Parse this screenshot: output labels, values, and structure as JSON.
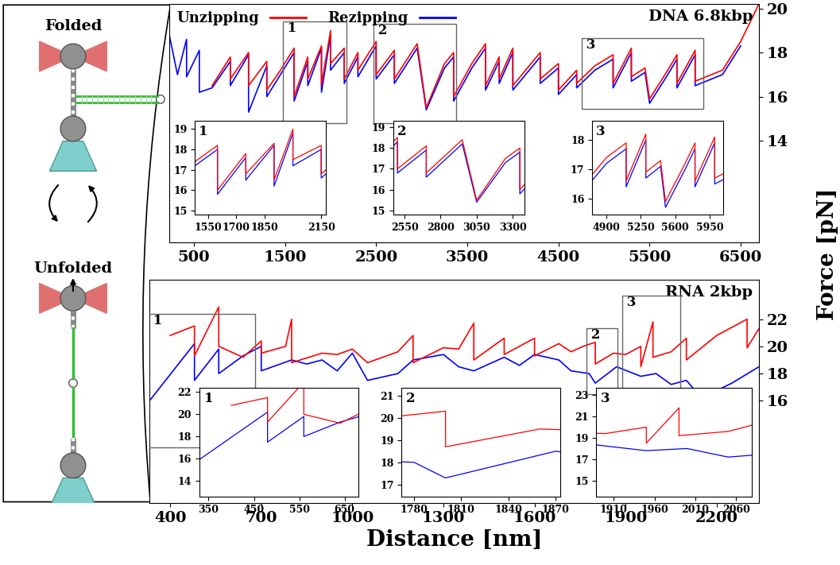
{
  "diagram": {
    "folded": "Folded",
    "unfolded": "Unfolded"
  },
  "x_label": "Distance [nm]",
  "y_label": "Force [pN]",
  "chart_data": [
    {
      "type": "line",
      "title": "DNA 6.8kbp",
      "legend": "upper left",
      "xlim": [
        230,
        6700
      ],
      "ylim": [
        9.4,
        20.2
      ],
      "xticks": [
        500,
        1500,
        2500,
        3500,
        4500,
        5500,
        6500
      ],
      "yticks": [
        14,
        16,
        18,
        20
      ],
      "series": [
        {
          "name": "Unzipping",
          "color": "red",
          "x": [
            700,
            900,
            900,
            1100,
            1100,
            1300,
            1300,
            1450,
            1600,
            1600,
            1750,
            1750,
            1900,
            1900,
            2000,
            2000,
            2150,
            2150,
            2300,
            2300,
            2500,
            2500,
            2700,
            2700,
            2950,
            3050,
            3250,
            3350,
            3350,
            3550,
            3700,
            3700,
            3850,
            3850,
            4000,
            4000,
            4200,
            4300,
            4300,
            4500,
            4500,
            4700,
            4700,
            4900,
            5100,
            5100,
            5300,
            5300,
            5450,
            5500,
            5700,
            5800,
            5800,
            6000,
            6000,
            6300,
            6500,
            6700
          ],
          "values": [
            16.5,
            17.8,
            16.8,
            18.0,
            16.5,
            17.6,
            16.3,
            17.2,
            18.2,
            16.0,
            17.8,
            16.8,
            18.3,
            16.5,
            19.0,
            17.5,
            18.2,
            16.8,
            18.0,
            17.2,
            18.5,
            17.0,
            18.1,
            16.8,
            18.4,
            15.5,
            17.5,
            18.0,
            16.0,
            17.5,
            18.4,
            16.5,
            17.8,
            16.8,
            18.2,
            16.5,
            17.5,
            18.0,
            16.8,
            17.5,
            16.3,
            17.2,
            16.6,
            17.4,
            17.9,
            16.6,
            18.2,
            16.9,
            17.3,
            15.9,
            17.2,
            17.9,
            16.6,
            18.1,
            16.7,
            17.2,
            18.5,
            20.2
          ]
        },
        {
          "name": "Rezipping",
          "color": "blue",
          "x": [
            230,
            320,
            420,
            420,
            560,
            560,
            700,
            900,
            900,
            1100,
            1100,
            1300,
            1300,
            1450,
            1600,
            1600,
            1750,
            1750,
            1900,
            1900,
            2000,
            2000,
            2150,
            2150,
            2300,
            2300,
            2500,
            2500,
            2700,
            2700,
            2950,
            3050,
            3250,
            3350,
            3350,
            3550,
            3700,
            3700,
            3850,
            3850,
            4000,
            4000,
            4200,
            4300,
            4300,
            4500,
            4500,
            4700,
            4700,
            4900,
            5100,
            5100,
            5300,
            5300,
            5450,
            5500,
            5700,
            5800,
            5800,
            6000,
            6000,
            6300,
            6500
          ],
          "values": [
            18.8,
            17.0,
            18.6,
            16.9,
            18.1,
            16.2,
            16.4,
            17.6,
            16.5,
            17.9,
            15.3,
            17.4,
            16.0,
            17.0,
            18.0,
            15.8,
            17.6,
            16.5,
            18.2,
            16.2,
            18.8,
            17.2,
            18.0,
            16.6,
            17.8,
            16.9,
            18.3,
            16.8,
            17.9,
            16.6,
            18.2,
            15.4,
            17.3,
            17.8,
            15.8,
            17.3,
            18.2,
            16.3,
            17.6,
            16.6,
            18.0,
            16.3,
            17.3,
            17.8,
            16.6,
            17.3,
            16.1,
            17.0,
            16.4,
            17.2,
            17.7,
            16.4,
            18.0,
            16.7,
            17.1,
            15.7,
            17.0,
            17.7,
            16.4,
            17.9,
            16.5,
            17.0,
            18.3
          ]
        }
      ],
      "insets": [
        {
          "title": "1",
          "xlim": [
            1480,
            2175
          ],
          "ylim": [
            14.8,
            19.4
          ],
          "xticks": [
            1550,
            1700,
            1850,
            2150
          ],
          "yticks": [
            15,
            16,
            17,
            18,
            19
          ]
        },
        {
          "title": "2",
          "xlim": [
            2470,
            3380
          ],
          "ylim": [
            14.8,
            19.3
          ],
          "xticks": [
            2550,
            2800,
            3050,
            3300
          ],
          "yticks": [
            15,
            16,
            17,
            18,
            19
          ]
        },
        {
          "title": "3",
          "xlim": [
            4755,
            6087
          ],
          "ylim": [
            15.45,
            18.65
          ],
          "xticks": [
            4900,
            5250,
            5600,
            5950
          ],
          "yticks": [
            16,
            17,
            18
          ]
        }
      ]
    },
    {
      "type": "line",
      "title": "RNA 2kbp",
      "xlim": [
        332,
        2339
      ],
      "ylim": [
        8.5,
        24.9
      ],
      "xticks": [
        400,
        700,
        1000,
        1300,
        1600,
        1900,
        2200
      ],
      "yticks": [
        16,
        18,
        20,
        22
      ],
      "series": [
        {
          "name": "Unzipping",
          "color": "red",
          "x": [
            400,
            480,
            480,
            560,
            560,
            640,
            700,
            700,
            780,
            800,
            800,
            900,
            950,
            1000,
            1050,
            1150,
            1200,
            1200,
            1300,
            1350,
            1400,
            1400,
            1500,
            1500,
            1600,
            1600,
            1680,
            1720,
            1760,
            1800,
            1800,
            1860,
            1900,
            1950,
            1950,
            1990,
            1990,
            2050,
            2100,
            2100,
            2200,
            2300,
            2300,
            2339
          ],
          "values": [
            20.8,
            21.5,
            19.3,
            22.9,
            20.0,
            19.2,
            20.4,
            19.5,
            20.0,
            22.0,
            18.8,
            19.5,
            19.4,
            19.8,
            18.8,
            19.6,
            20.8,
            18.8,
            19.9,
            19.8,
            21.7,
            19.0,
            20.6,
            19.4,
            20.6,
            19.3,
            20.2,
            19.6,
            20.0,
            20.3,
            18.7,
            19.5,
            19.4,
            20.0,
            18.5,
            21.8,
            19.2,
            19.6,
            20.6,
            19.0,
            20.8,
            22.0,
            19.9,
            21.3
          ]
        },
        {
          "name": "Rezipping",
          "color": "blue",
          "x": [
            332,
            480,
            480,
            560,
            560,
            640,
            700,
            700,
            800,
            850,
            900,
            950,
            1000,
            1050,
            1150,
            1200,
            1300,
            1350,
            1400,
            1500,
            1550,
            1600,
            1680,
            1720,
            1780,
            1800,
            1870,
            1950,
            2000,
            2050,
            2100,
            2150,
            2250,
            2339
          ],
          "values": [
            16.0,
            20.2,
            17.5,
            19.8,
            18.0,
            19.3,
            20.0,
            18.2,
            19.0,
            18.7,
            19.0,
            18.2,
            19.5,
            17.5,
            18.0,
            19.0,
            19.4,
            18.5,
            18.2,
            19.2,
            18.6,
            19.4,
            19.0,
            18.2,
            18.0,
            17.3,
            18.5,
            17.8,
            18.0,
            17.2,
            17.5,
            16.2,
            17.3,
            18.5
          ]
        }
      ],
      "insets": [
        {
          "title": "1",
          "xlim": [
            329,
            681
          ],
          "ylim": [
            12.6,
            22.4
          ],
          "xticks": [
            350,
            450,
            550,
            650
          ],
          "yticks": [
            14,
            16,
            18,
            20,
            22
          ]
        },
        {
          "title": "2",
          "xlim": [
            1772,
            1873
          ],
          "ylim": [
            16.46,
            21.36
          ],
          "xticks": [
            1780,
            1810,
            1840,
            1870
          ],
          "yticks": [
            17,
            18,
            19,
            20,
            21
          ]
        },
        {
          "title": "3",
          "xlim": [
            1889,
            2079
          ],
          "ylim": [
            13.5,
            23.7
          ],
          "xticks": [
            1910,
            1960,
            2010,
            2060
          ],
          "yticks": [
            15,
            17,
            19,
            21,
            23
          ]
        }
      ]
    }
  ]
}
